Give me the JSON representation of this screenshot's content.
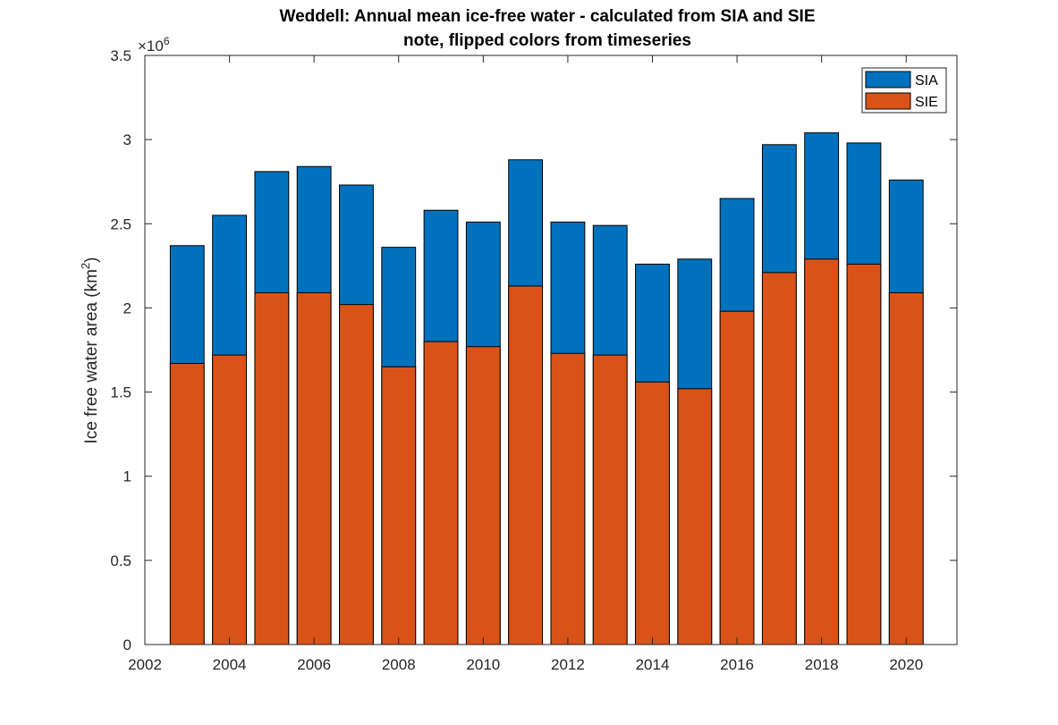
{
  "chart_data": {
    "type": "bar",
    "title": "Weddell: Annual mean ice-free water - calculated from SIA and SIE",
    "subtitle": "note, flipped colors from timeseries",
    "xlabel": "",
    "ylabel": "Ice free water area (km",
    "ylabel_superscript": "2",
    "ylabel_suffix": ")",
    "y_exponent_label": "×10",
    "y_exponent_power": "6",
    "xlim": [
      2002,
      2021.2
    ],
    "ylim": [
      0,
      3.5
    ],
    "x_ticks": [
      2002,
      2004,
      2006,
      2008,
      2010,
      2012,
      2014,
      2016,
      2018,
      2020
    ],
    "y_ticks": [
      0,
      0.5,
      1,
      1.5,
      2,
      2.5,
      3,
      3.5
    ],
    "y_tick_labels": [
      "0",
      "0.5",
      "1",
      "1.5",
      "2",
      "2.5",
      "3",
      "3.5"
    ],
    "grid": false,
    "legend_position": "top-right",
    "categories": [
      2003,
      2004,
      2005,
      2006,
      2007,
      2008,
      2009,
      2010,
      2011,
      2012,
      2013,
      2014,
      2015,
      2016,
      2017,
      2018,
      2019,
      2020
    ],
    "series": [
      {
        "name": "SIA",
        "color": "#0072BD",
        "values": [
          2.37,
          2.55,
          2.81,
          2.84,
          2.73,
          2.36,
          2.58,
          2.51,
          2.88,
          2.51,
          2.49,
          2.26,
          2.29,
          2.65,
          2.97,
          3.04,
          2.98,
          2.76
        ]
      },
      {
        "name": "SIE",
        "color": "#D95319",
        "values": [
          1.67,
          1.72,
          2.09,
          2.09,
          2.02,
          1.65,
          1.8,
          1.77,
          2.13,
          1.73,
          1.72,
          1.56,
          1.52,
          1.98,
          2.21,
          2.29,
          2.26,
          2.09
        ]
      }
    ]
  }
}
